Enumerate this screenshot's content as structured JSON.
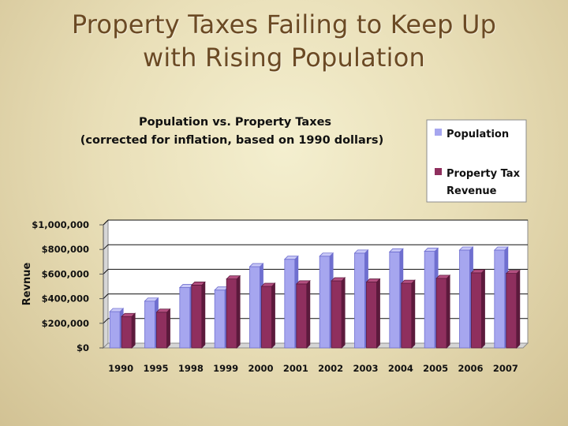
{
  "slide": {
    "title_line1": "Property Taxes Failing to Keep Up",
    "title_line2": "with Rising Population"
  },
  "colors": {
    "population": "#a6a6ef",
    "population_dark": "#6f6fcf",
    "population_top": "#c9c9f7",
    "tax": "#8f2f5e",
    "tax_dark": "#5c1a3c",
    "tax_top": "#b34f80"
  },
  "chart_data": {
    "type": "bar",
    "title": "Population vs. Property Taxes",
    "subtitle": "(corrected for inflation, based on 1990 dollars)",
    "xlabel": "",
    "ylabel": "Revnue",
    "ylim": [
      0,
      1000000
    ],
    "yticks": [
      0,
      200000,
      400000,
      600000,
      800000,
      1000000
    ],
    "ytick_labels": [
      "$0",
      "$200,000",
      "$400,000",
      "$600,000",
      "$800,000",
      "$1,000,000"
    ],
    "grid": true,
    "legend_position": "top-right",
    "categories": [
      "1990",
      "1995",
      "1998",
      "1999",
      "2000",
      "2001",
      "2002",
      "2003",
      "2004",
      "2005",
      "2006",
      "2007"
    ],
    "series": [
      {
        "name": "Population",
        "values": [
          295000,
          380000,
          490000,
          470000,
          660000,
          720000,
          745000,
          770000,
          780000,
          785000,
          795000,
          795000
        ]
      },
      {
        "name": "Property Tax Revenue",
        "legend_lines": [
          "Property Tax",
          "Revenue"
        ],
        "values": [
          255000,
          290000,
          510000,
          560000,
          500000,
          520000,
          545000,
          535000,
          525000,
          565000,
          610000,
          605000
        ]
      }
    ]
  }
}
